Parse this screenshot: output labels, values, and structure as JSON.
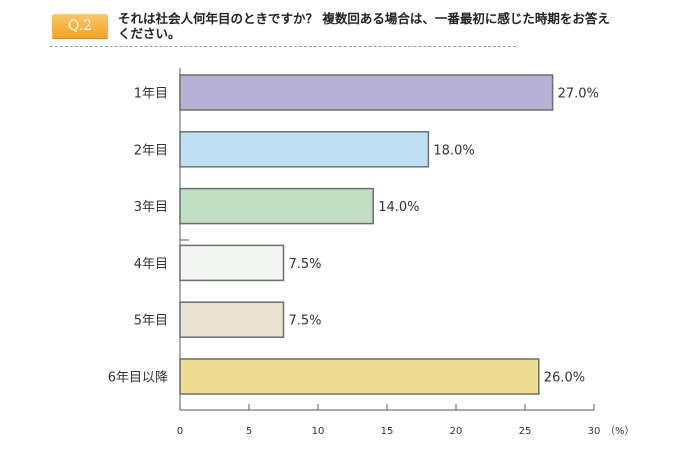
{
  "question": {
    "badge": "Q.2",
    "text": "それは社会人何年目のときですか？ 複数回ある場合は、一番最初に感じた時期をお答えください。"
  },
  "chart_data": {
    "type": "bar",
    "orientation": "horizontal",
    "categories": [
      "1年目",
      "2年目",
      "3年目",
      "4年目",
      "5年目",
      "6年目以降"
    ],
    "values": [
      27.0,
      18.0,
      14.0,
      7.5,
      7.5,
      26.0
    ],
    "value_labels": [
      "27.0%",
      "18.0%",
      "14.0%",
      "7.5%",
      "7.5%",
      "26.0%"
    ],
    "colors": [
      "#b8b1d6",
      "#bfe0f3",
      "#c1dfc4",
      "#f4f6f4",
      "#eae3d3",
      "#efdd92"
    ],
    "xlim": [
      0,
      30
    ],
    "xticks": [
      "0",
      "5",
      "10",
      "15",
      "20",
      "25",
      "30"
    ],
    "unit": "（%）",
    "grid": false
  }
}
